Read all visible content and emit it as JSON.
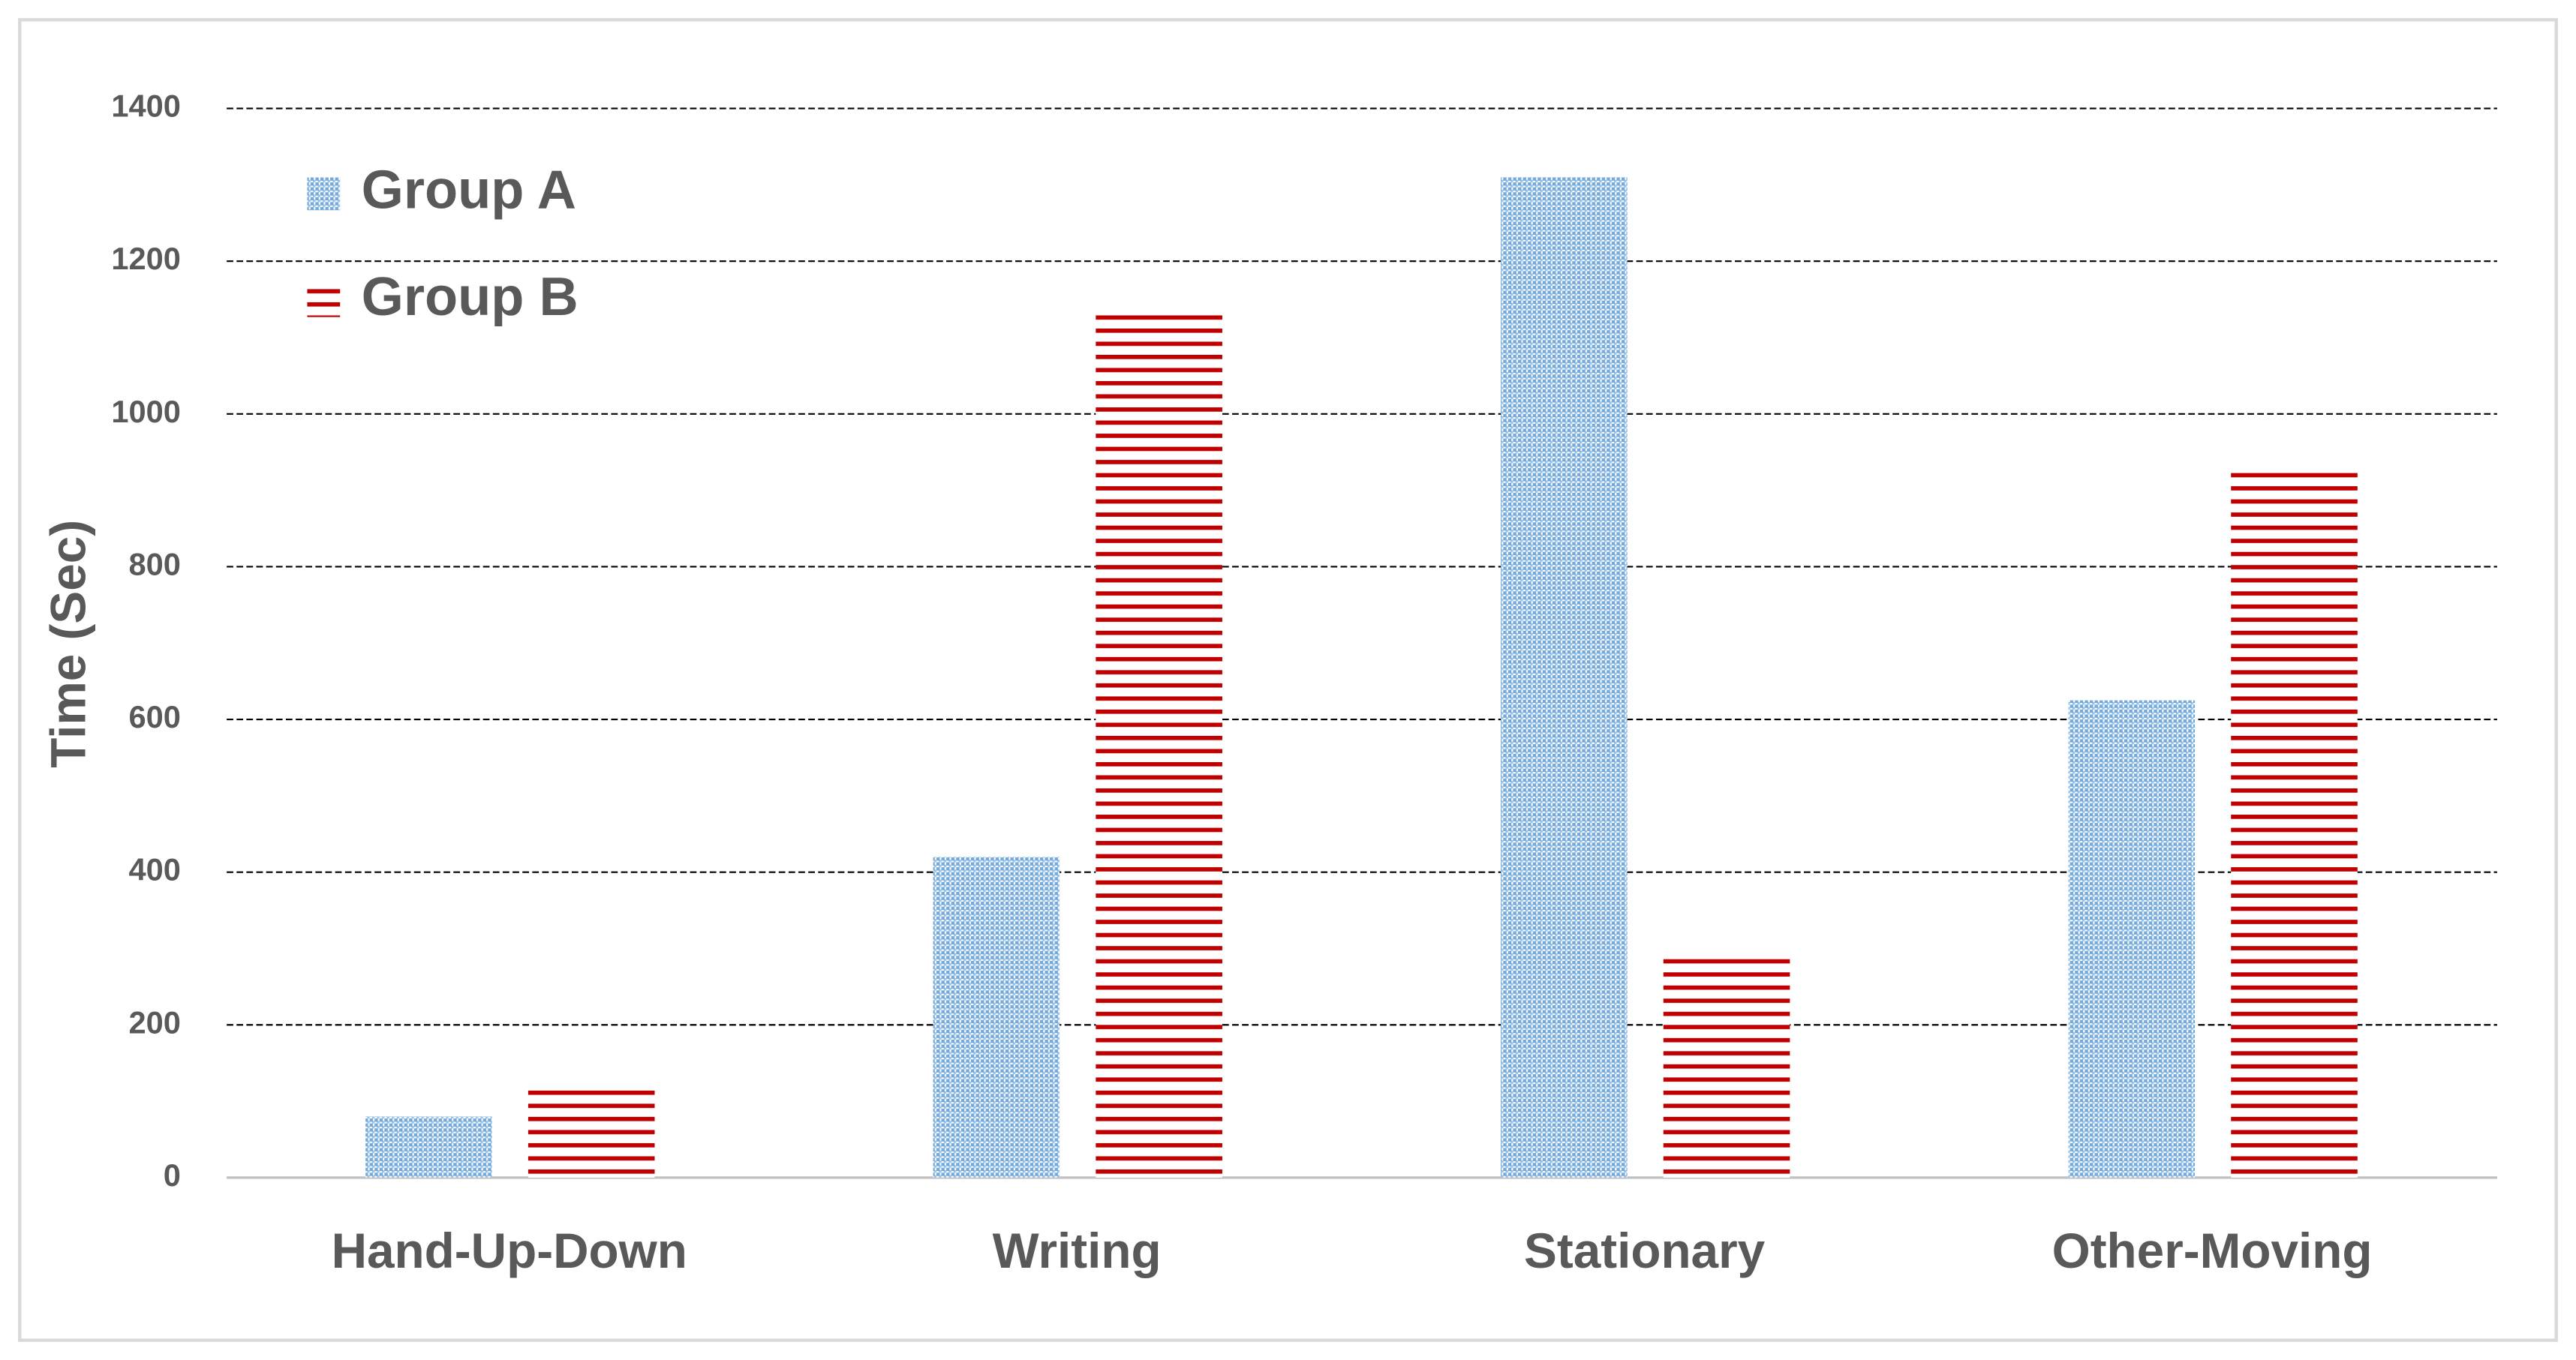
{
  "chart_data": {
    "type": "bar",
    "y_label": "Time (Sec)",
    "categories": [
      "Hand-Up-Down",
      "Writing",
      "Stationary",
      "Other-Moving"
    ],
    "series": [
      {
        "name": "Group A",
        "color": "#5b9bd5",
        "values": [
          80,
          420,
          1310,
          625
        ]
      },
      {
        "name": "Group B",
        "color": "#c00000",
        "values": [
          120,
          1140,
          290,
          925
        ]
      }
    ],
    "ylim": [
      0,
      1400
    ],
    "yticks": [
      0,
      200,
      400,
      600,
      800,
      1000,
      1200,
      1400
    ],
    "grid": true,
    "legend": "top-left"
  }
}
